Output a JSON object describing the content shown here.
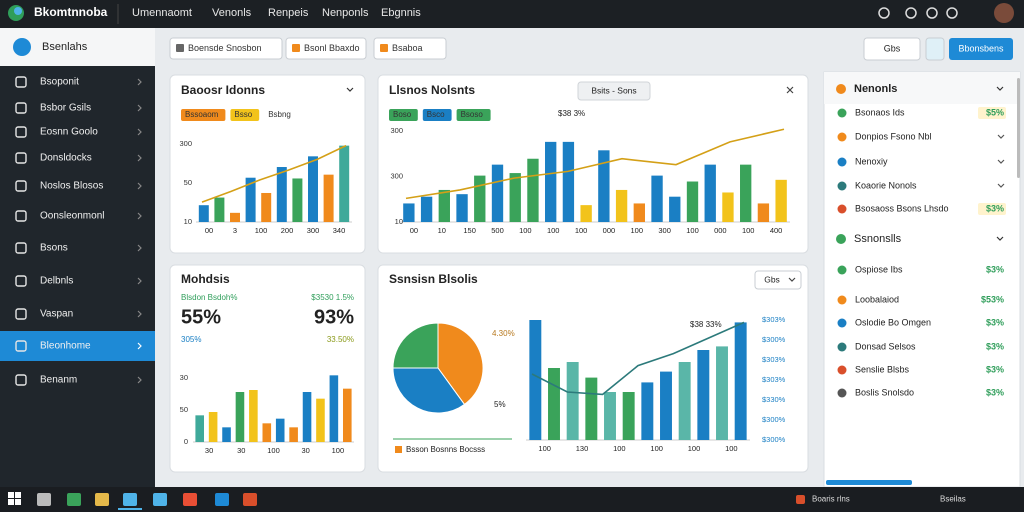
{
  "top_nav": {
    "brand": "Bkomtnnoba",
    "menu": [
      "Umennaomt",
      "Venonls",
      "Renpeis",
      "Nenponls",
      "Ebgnnis"
    ]
  },
  "sidebar": {
    "title": "Bsenlahs",
    "items": [
      "Bsoponit",
      "Bsbor Gsils",
      "Eosnn Goolo",
      "Donsldocks",
      "Noslos Blosos",
      "Oonsleonmonl",
      "Bsons",
      "Delbnls",
      "Vaspan",
      "Bleonhome",
      "Benanm"
    ],
    "active": 9
  },
  "toolbar": {
    "buttons": [
      "Boensde Snosbon",
      "Bsonl Bbaxdo",
      "Bsaboa"
    ],
    "search": "Gbs",
    "primary": "Bbonsbens"
  },
  "cards": [
    {
      "title": "Baoosr Idonns",
      "legend": [
        {
          "label": "Bssoaom",
          "color": "#f08a1c"
        },
        {
          "label": "Bsso",
          "color": "#f2c31b"
        },
        {
          "label": "Bsbng"
        }
      ],
      "chart": {
        "type": "bar",
        "values": [
          22,
          32,
          12,
          58,
          38,
          72,
          57,
          86,
          62,
          100
        ],
        "colors": [
          "#1a7fc4",
          "#3aa35a",
          "#f08a1c",
          "#1a7fc4",
          "#f08a1c",
          "#1a7fc4",
          "#3aa35a",
          "#1a7fc4",
          "#f08a1c",
          "#3fa99a"
        ],
        "line": [
          26,
          40,
          55,
          68,
          82,
          100
        ],
        "line_color": "#d4a017",
        "ylim": [
          0,
          110
        ],
        "y_labels": [
          "300",
          "50",
          "10"
        ],
        "x_labels": [
          "00",
          "3",
          "100",
          "200",
          "300",
          "340"
        ]
      }
    },
    {
      "title": "Llsnos Nolsnts",
      "badge": "Bsits - Sons",
      "annotation": "$38 3%",
      "legend": [
        {
          "label": "Boso",
          "color": "#3aa35a"
        },
        {
          "label": "Bsco",
          "color": "#1a7fc4"
        },
        {
          "label": "Bsoso",
          "color": "#3aa35a"
        }
      ],
      "chart": {
        "type": "bar",
        "values": [
          22,
          30,
          38,
          33,
          55,
          68,
          58,
          75,
          95,
          95,
          20,
          85,
          38,
          22,
          55,
          30,
          48,
          68,
          35,
          68,
          22,
          50
        ],
        "colors": [
          "#1a7fc4",
          "#1a7fc4",
          "#3aa35a",
          "#1a7fc4",
          "#3aa35a",
          "#1a7fc4",
          "#3aa35a",
          "#3aa35a",
          "#1a7fc4",
          "#1a7fc4",
          "#f2c31b",
          "#1a7fc4",
          "#f2c31b",
          "#f08a1c",
          "#1a7fc4",
          "#1a7fc4",
          "#3aa35a",
          "#1a7fc4",
          "#f2c31b",
          "#3aa35a",
          "#f08a1c",
          "#f2c31b"
        ],
        "line": [
          28,
          38,
          52,
          60,
          75,
          68,
          95,
          110
        ],
        "line_color": "#d4a017",
        "ylim": [
          0,
          115
        ],
        "y_labels": [
          "300",
          "300",
          "10"
        ],
        "x_labels": [
          "00",
          "10",
          "150",
          "500",
          "100",
          "100",
          "100",
          "000",
          "100",
          "300",
          "100",
          "000",
          "100",
          "400"
        ]
      }
    },
    {
      "title": "Mohdsis",
      "stats": [
        {
          "label": "Blsdon Bsdoh%",
          "value": "55%",
          "sub": "305%"
        },
        {
          "label": "$3530 1.5%",
          "value": "93%",
          "sub": "33.50%"
        }
      ],
      "chart": {
        "type": "bar",
        "values": [
          40,
          45,
          22,
          75,
          78,
          28,
          35,
          22,
          75,
          65,
          100,
          80
        ],
        "colors": [
          "#3fa99a",
          "#f2c31b",
          "#1a7fc4",
          "#3aa35a",
          "#f2c31b",
          "#f08a1c",
          "#1a7fc4",
          "#f08a1c",
          "#1a7fc4",
          "#f2c31b",
          "#1a7fc4",
          "#f08a1c"
        ],
        "ylim": [
          0,
          105
        ],
        "y_labels": [
          "30",
          "50",
          "0"
        ],
        "x_labels": [
          "30",
          "30",
          "100",
          "30",
          "100"
        ]
      }
    },
    {
      "title": "Ssnsisn Blsolis",
      "dropdown": "Gbs",
      "legend_text": "Bsson Bosnns Bocsss",
      "annotation": "$38 33%",
      "pie": {
        "type": "pie",
        "values": [
          40,
          35,
          25
        ],
        "colors": [
          "#f08a1c",
          "#1a7fc4",
          "#3aa35a"
        ],
        "notes": [
          "4.30%",
          "5%"
        ]
      },
      "chart": {
        "type": "bar",
        "values": [
          100,
          60,
          65,
          52,
          40,
          40,
          48,
          57,
          65,
          75,
          78,
          98
        ],
        "colors": [
          "#1a7fc4",
          "#3aa35a",
          "#5ab6a8",
          "#3aa35a",
          "#5ab6a8",
          "#3aa35a",
          "#1a7fc4",
          "#1a7fc4",
          "#5ab6a8",
          "#1a7fc4",
          "#5ab6a8",
          "#1a7fc4"
        ],
        "line": [
          55,
          40,
          38,
          62,
          72,
          85,
          98
        ],
        "line_color": "#2c7a7b",
        "ylim": [
          0,
          105
        ],
        "y_labels": [
          "$303%",
          "$300%",
          "$303%",
          "$303%",
          "$330%",
          "$300%",
          "$300%"
        ],
        "x_labels": [
          "100",
          "130",
          "100",
          "100",
          "100",
          "100"
        ]
      }
    }
  ],
  "right_panel": {
    "sections": [
      {
        "title": "Nenonls",
        "rows": [
          {
            "label": "Bsonaos Ids",
            "value": "$5%"
          },
          {
            "label": "Donpios Fsono Nbl"
          },
          {
            "label": "Nenoxiy"
          },
          {
            "label": "Koaorie Nonols"
          },
          {
            "label": "Bsosaoss Bsons Lhsdo",
            "value": "$3%"
          }
        ]
      },
      {
        "title": "Ssnonslls",
        "rows": [
          {
            "label": "Ospiose Ibs",
            "value": "$3%"
          },
          {
            "label": "Loobalaiod",
            "value": "$53%"
          },
          {
            "label": "Oslodie Bo Omgen",
            "value": "$3%"
          },
          {
            "label": "Donsad Selsos",
            "value": "$3%"
          },
          {
            "label": "Senslie Blsbs",
            "value": "$3%"
          },
          {
            "label": "Boslis Snolsdo",
            "value": "$3%"
          }
        ]
      }
    ]
  },
  "taskbar": {
    "items": [
      "Boaris rlns",
      "Bseilas"
    ]
  }
}
